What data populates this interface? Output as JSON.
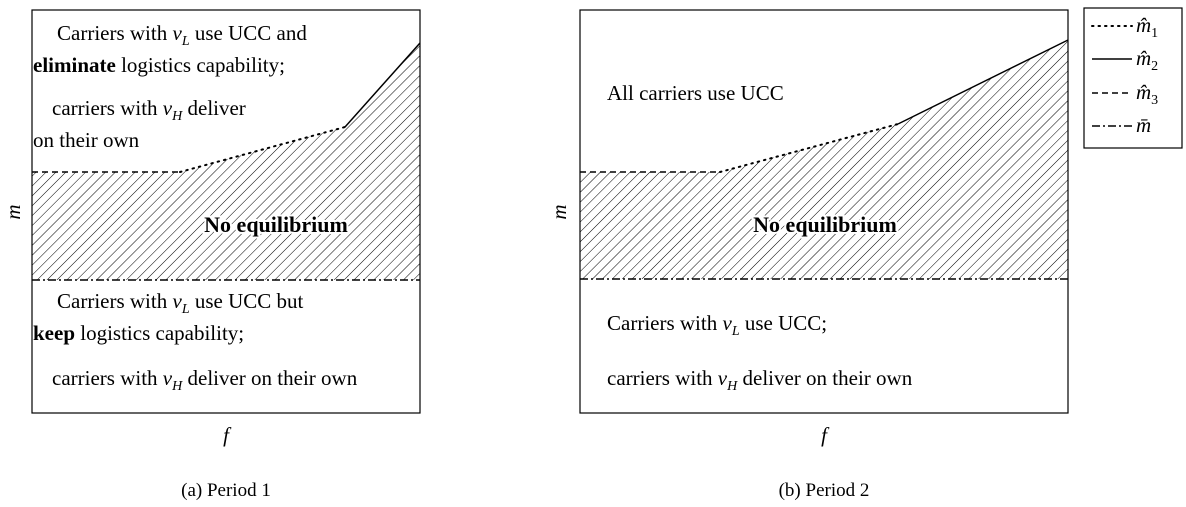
{
  "panels": [
    {
      "caption": "(a) Period 1",
      "x_label": "f",
      "y_label": "m",
      "center_label": "No equilibrium",
      "upper": [
        [
          "Carriers with ",
          "v",
          "L",
          " use UCC and"
        ],
        [
          "eliminate",
          " logistics capability;"
        ],
        [
          "carriers with ",
          "v",
          "H",
          " deliver"
        ],
        [
          "on their own"
        ]
      ],
      "lower": [
        [
          "Carriers with ",
          "v",
          "L",
          " use UCC but"
        ],
        [
          "keep",
          " logistics capability;"
        ],
        [
          "carriers with ",
          "v",
          "H",
          " deliver on their own"
        ]
      ]
    },
    {
      "caption": "(b) Period 2",
      "x_label": "f",
      "y_label": "m",
      "center_label": "No equilibrium",
      "upper": [
        [
          "All carriers use UCC"
        ]
      ],
      "lower": [
        [
          "Carriers with ",
          "v",
          "L",
          " use UCC;"
        ],
        [
          "carriers with ",
          "v",
          "H",
          " deliver on their own"
        ]
      ]
    }
  ],
  "legend": [
    [
      "m̂",
      "1"
    ],
    [
      "m̂",
      "2"
    ],
    [
      "m̂",
      "3"
    ],
    [
      "m̄"
    ]
  ]
}
